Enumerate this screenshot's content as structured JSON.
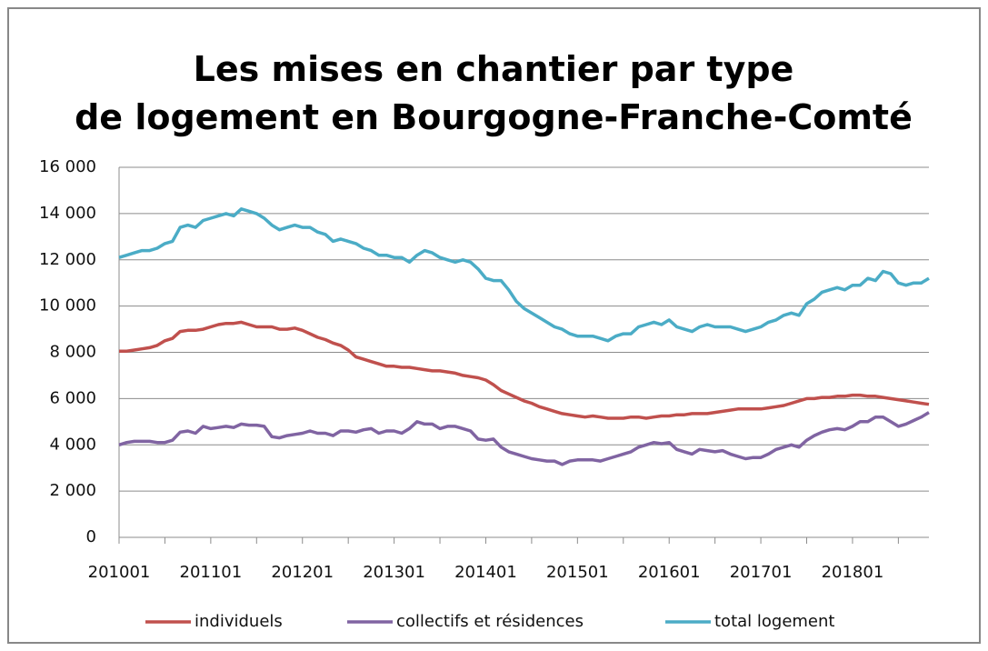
{
  "chart_data": {
    "type": "line",
    "title": "Les mises en chantier par type de logement en Bourgogne-Franche-Comté",
    "categories": [
      "201001",
      null,
      null,
      null,
      null,
      null,
      null,
      null,
      null,
      null,
      null,
      null,
      "201101",
      null,
      null,
      null,
      null,
      null,
      null,
      null,
      null,
      null,
      null,
      null,
      "201201",
      null,
      null,
      null,
      null,
      null,
      null,
      null,
      null,
      null,
      null,
      null,
      "201301",
      null,
      null,
      null,
      null,
      null,
      null,
      null,
      null,
      null,
      null,
      null,
      "201401",
      null,
      null,
      null,
      null,
      null,
      null,
      null,
      null,
      null,
      null,
      null,
      "201501",
      null,
      null,
      null,
      null,
      null,
      null,
      null,
      null,
      null,
      null,
      null,
      "201601",
      null,
      null,
      null,
      null,
      null,
      null,
      null,
      null,
      null,
      null,
      null,
      "201701",
      null,
      null,
      null,
      null,
      null,
      null,
      null,
      null,
      null,
      null,
      null,
      "201801",
      null,
      null,
      null,
      null,
      null,
      null,
      null,
      null,
      null,
      null
    ],
    "series": [
      {
        "name": "individuels",
        "color": "#c0504d",
        "values": [
          8050,
          8050,
          8100,
          8150,
          8200,
          8300,
          8500,
          8600,
          8900,
          8950,
          8950,
          9000,
          9100,
          9200,
          9250,
          9250,
          9300,
          9200,
          9100,
          9100,
          9100,
          9000,
          9000,
          9050,
          8950,
          8800,
          8650,
          8550,
          8400,
          8300,
          8100,
          7800,
          7700,
          7600,
          7500,
          7400,
          7400,
          7350,
          7350,
          7300,
          7250,
          7200,
          7200,
          7150,
          7100,
          7000,
          6950,
          6900,
          6800,
          6600,
          6350,
          6200,
          6050,
          5900,
          5800,
          5650,
          5550,
          5450,
          5350,
          5300,
          5250,
          5200,
          5250,
          5200,
          5150,
          5150,
          5150,
          5200,
          5200,
          5150,
          5200,
          5250,
          5250,
          5300,
          5300,
          5350,
          5350,
          5350,
          5400,
          5450,
          5500,
          5550,
          5550,
          5550,
          5550,
          5600,
          5650,
          5700,
          5800,
          5900,
          6000,
          6000,
          6050,
          6050,
          6100,
          6100,
          6150,
          6150,
          6100,
          6100,
          6050,
          6000,
          5950,
          5900,
          5850,
          5800,
          5750
        ]
      },
      {
        "name": "collectifs et résidences",
        "color": "#8064a2",
        "values": [
          4000,
          4100,
          4150,
          4150,
          4150,
          4100,
          4100,
          4200,
          4550,
          4600,
          4500,
          4800,
          4700,
          4750,
          4800,
          4750,
          4900,
          4850,
          4850,
          4800,
          4350,
          4300,
          4400,
          4450,
          4500,
          4600,
          4500,
          4500,
          4400,
          4600,
          4600,
          4550,
          4650,
          4700,
          4500,
          4600,
          4600,
          4500,
          4700,
          5000,
          4900,
          4900,
          4700,
          4800,
          4800,
          4700,
          4600,
          4250,
          4200,
          4250,
          3900,
          3700,
          3600,
          3500,
          3400,
          3350,
          3300,
          3300,
          3150,
          3300,
          3350,
          3350,
          3350,
          3300,
          3400,
          3500,
          3600,
          3700,
          3900,
          4000,
          4100,
          4050,
          4100,
          3800,
          3700,
          3600,
          3800,
          3750,
          3700,
          3750,
          3600,
          3500,
          3400,
          3450,
          3450,
          3600,
          3800,
          3900,
          4000,
          3900,
          4200,
          4400,
          4550,
          4650,
          4700,
          4650,
          4800,
          5000,
          5000,
          5200,
          5200,
          5000,
          4800,
          4900,
          5050,
          5200,
          5400
        ]
      },
      {
        "name": "total logement",
        "color": "#4bacc6",
        "values": [
          12100,
          12200,
          12300,
          12400,
          12400,
          12500,
          12700,
          12800,
          13400,
          13500,
          13400,
          13700,
          13800,
          13900,
          14000,
          13900,
          14200,
          14100,
          14000,
          13800,
          13500,
          13300,
          13400,
          13500,
          13400,
          13400,
          13200,
          13100,
          12800,
          12900,
          12800,
          12700,
          12500,
          12400,
          12200,
          12200,
          12100,
          12100,
          11900,
          12200,
          12400,
          12300,
          12100,
          12000,
          11900,
          12000,
          11900,
          11600,
          11200,
          11100,
          11100,
          10700,
          10200,
          9900,
          9700,
          9500,
          9300,
          9100,
          9000,
          8800,
          8700,
          8700,
          8700,
          8600,
          8500,
          8700,
          8800,
          8800,
          9100,
          9200,
          9300,
          9200,
          9400,
          9100,
          9000,
          8900,
          9100,
          9200,
          9100,
          9100,
          9100,
          9000,
          8900,
          9000,
          9100,
          9300,
          9400,
          9600,
          9700,
          9600,
          10100,
          10300,
          10600,
          10700,
          10800,
          10700,
          10900,
          10900,
          11200,
          11100,
          11500,
          11400,
          11000,
          10900,
          11000,
          11000,
          11200
        ]
      }
    ],
    "ylim": [
      0,
      16000
    ],
    "yticks": [
      0,
      {
        "value": 2000,
        "label": "2 000"
      },
      {
        "value": 4000,
        "label": "4 000"
      },
      {
        "value": 6000,
        "label": "6 000"
      },
      {
        "value": 8000,
        "label": "8 000"
      },
      {
        "value": 10000,
        "label": "10 000"
      },
      {
        "value": 12000,
        "label": "12 000"
      },
      {
        "value": 14000,
        "label": "14 000"
      },
      {
        "value": 16000,
        "label": "16 000"
      }
    ],
    "grid": true
  }
}
